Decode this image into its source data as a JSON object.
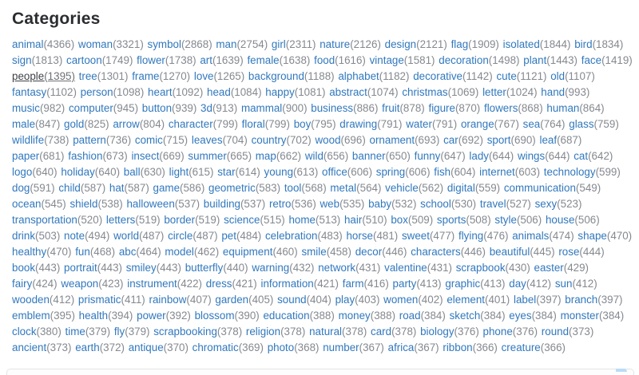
{
  "page": {
    "title": "Categories"
  },
  "active_tag": "people",
  "colors": {
    "link_blue": "#3178bd",
    "count_gray": "#85898f",
    "active_dark": "#3f4246",
    "heading": "#2b2d30",
    "panel_border": "#e3e4e6",
    "panel_handle_blue": "#bcdcf5"
  },
  "tags": [
    {
      "name": "animal",
      "count": 4366
    },
    {
      "name": "woman",
      "count": 3321
    },
    {
      "name": "symbol",
      "count": 2868
    },
    {
      "name": "man",
      "count": 2754
    },
    {
      "name": "girl",
      "count": 2311
    },
    {
      "name": "nature",
      "count": 2126
    },
    {
      "name": "design",
      "count": 2121
    },
    {
      "name": "flag",
      "count": 1909
    },
    {
      "name": "isolated",
      "count": 1844
    },
    {
      "name": "bird",
      "count": 1834
    },
    {
      "name": "sign",
      "count": 1813
    },
    {
      "name": "cartoon",
      "count": 1749
    },
    {
      "name": "flower",
      "count": 1738
    },
    {
      "name": "art",
      "count": 1639
    },
    {
      "name": "female",
      "count": 1638
    },
    {
      "name": "food",
      "count": 1616
    },
    {
      "name": "vintage",
      "count": 1581
    },
    {
      "name": "decoration",
      "count": 1498
    },
    {
      "name": "plant",
      "count": 1443
    },
    {
      "name": "face",
      "count": 1419
    },
    {
      "name": "people",
      "count": 1395
    },
    {
      "name": "tree",
      "count": 1301
    },
    {
      "name": "frame",
      "count": 1270
    },
    {
      "name": "love",
      "count": 1265
    },
    {
      "name": "background",
      "count": 1188
    },
    {
      "name": "alphabet",
      "count": 1182
    },
    {
      "name": "decorative",
      "count": 1142
    },
    {
      "name": "cute",
      "count": 1121
    },
    {
      "name": "old",
      "count": 1107
    },
    {
      "name": "fantasy",
      "count": 1102
    },
    {
      "name": "person",
      "count": 1098
    },
    {
      "name": "heart",
      "count": 1092
    },
    {
      "name": "head",
      "count": 1084
    },
    {
      "name": "happy",
      "count": 1081
    },
    {
      "name": "abstract",
      "count": 1074
    },
    {
      "name": "christmas",
      "count": 1069
    },
    {
      "name": "letter",
      "count": 1024
    },
    {
      "name": "hand",
      "count": 993
    },
    {
      "name": "music",
      "count": 982
    },
    {
      "name": "computer",
      "count": 945
    },
    {
      "name": "button",
      "count": 939
    },
    {
      "name": "3d",
      "count": 913
    },
    {
      "name": "mammal",
      "count": 900
    },
    {
      "name": "business",
      "count": 886
    },
    {
      "name": "fruit",
      "count": 878
    },
    {
      "name": "figure",
      "count": 870
    },
    {
      "name": "flowers",
      "count": 868
    },
    {
      "name": "human",
      "count": 864
    },
    {
      "name": "male",
      "count": 847
    },
    {
      "name": "gold",
      "count": 825
    },
    {
      "name": "arrow",
      "count": 804
    },
    {
      "name": "character",
      "count": 799
    },
    {
      "name": "floral",
      "count": 799
    },
    {
      "name": "boy",
      "count": 795
    },
    {
      "name": "drawing",
      "count": 791
    },
    {
      "name": "water",
      "count": 791
    },
    {
      "name": "orange",
      "count": 767
    },
    {
      "name": "sea",
      "count": 764
    },
    {
      "name": "glass",
      "count": 759
    },
    {
      "name": "wildlife",
      "count": 738
    },
    {
      "name": "pattern",
      "count": 736
    },
    {
      "name": "comic",
      "count": 715
    },
    {
      "name": "leaves",
      "count": 704
    },
    {
      "name": "country",
      "count": 702
    },
    {
      "name": "wood",
      "count": 696
    },
    {
      "name": "ornament",
      "count": 693
    },
    {
      "name": "car",
      "count": 692
    },
    {
      "name": "sport",
      "count": 690
    },
    {
      "name": "leaf",
      "count": 687
    },
    {
      "name": "paper",
      "count": 681
    },
    {
      "name": "fashion",
      "count": 673
    },
    {
      "name": "insect",
      "count": 669
    },
    {
      "name": "summer",
      "count": 665
    },
    {
      "name": "map",
      "count": 662
    },
    {
      "name": "wild",
      "count": 656
    },
    {
      "name": "banner",
      "count": 650
    },
    {
      "name": "funny",
      "count": 647
    },
    {
      "name": "lady",
      "count": 644
    },
    {
      "name": "wings",
      "count": 644
    },
    {
      "name": "cat",
      "count": 642
    },
    {
      "name": "logo",
      "count": 640
    },
    {
      "name": "holiday",
      "count": 640
    },
    {
      "name": "ball",
      "count": 630
    },
    {
      "name": "light",
      "count": 615
    },
    {
      "name": "star",
      "count": 614
    },
    {
      "name": "young",
      "count": 613
    },
    {
      "name": "office",
      "count": 606
    },
    {
      "name": "spring",
      "count": 606
    },
    {
      "name": "fish",
      "count": 604
    },
    {
      "name": "internet",
      "count": 603
    },
    {
      "name": "technology",
      "count": 599
    },
    {
      "name": "dog",
      "count": 591
    },
    {
      "name": "child",
      "count": 587
    },
    {
      "name": "hat",
      "count": 587
    },
    {
      "name": "game",
      "count": 586
    },
    {
      "name": "geometric",
      "count": 583
    },
    {
      "name": "tool",
      "count": 568
    },
    {
      "name": "metal",
      "count": 564
    },
    {
      "name": "vehicle",
      "count": 562
    },
    {
      "name": "digital",
      "count": 559
    },
    {
      "name": "communication",
      "count": 549
    },
    {
      "name": "ocean",
      "count": 545
    },
    {
      "name": "shield",
      "count": 538
    },
    {
      "name": "halloween",
      "count": 537
    },
    {
      "name": "building",
      "count": 537
    },
    {
      "name": "retro",
      "count": 536
    },
    {
      "name": "web",
      "count": 535
    },
    {
      "name": "baby",
      "count": 532
    },
    {
      "name": "school",
      "count": 530
    },
    {
      "name": "travel",
      "count": 527
    },
    {
      "name": "sexy",
      "count": 523
    },
    {
      "name": "transportation",
      "count": 520
    },
    {
      "name": "letters",
      "count": 519
    },
    {
      "name": "border",
      "count": 519
    },
    {
      "name": "science",
      "count": 515
    },
    {
      "name": "home",
      "count": 513
    },
    {
      "name": "hair",
      "count": 510
    },
    {
      "name": "box",
      "count": 509
    },
    {
      "name": "sports",
      "count": 508
    },
    {
      "name": "style",
      "count": 506
    },
    {
      "name": "house",
      "count": 506
    },
    {
      "name": "drink",
      "count": 503
    },
    {
      "name": "note",
      "count": 494
    },
    {
      "name": "world",
      "count": 487
    },
    {
      "name": "circle",
      "count": 487
    },
    {
      "name": "pet",
      "count": 484
    },
    {
      "name": "celebration",
      "count": 483
    },
    {
      "name": "horse",
      "count": 481
    },
    {
      "name": "sweet",
      "count": 477
    },
    {
      "name": "flying",
      "count": 476
    },
    {
      "name": "animals",
      "count": 474
    },
    {
      "name": "shape",
      "count": 470
    },
    {
      "name": "healthy",
      "count": 470
    },
    {
      "name": "fun",
      "count": 468
    },
    {
      "name": "abc",
      "count": 464
    },
    {
      "name": "model",
      "count": 462
    },
    {
      "name": "equipment",
      "count": 460
    },
    {
      "name": "smile",
      "count": 458
    },
    {
      "name": "decor",
      "count": 446
    },
    {
      "name": "characters",
      "count": 446
    },
    {
      "name": "beautiful",
      "count": 445
    },
    {
      "name": "rose",
      "count": 444
    },
    {
      "name": "book",
      "count": 443
    },
    {
      "name": "portrait",
      "count": 443
    },
    {
      "name": "smiley",
      "count": 443
    },
    {
      "name": "butterfly",
      "count": 440
    },
    {
      "name": "warning",
      "count": 432
    },
    {
      "name": "network",
      "count": 431
    },
    {
      "name": "valentine",
      "count": 431
    },
    {
      "name": "scrapbook",
      "count": 430
    },
    {
      "name": "easter",
      "count": 429
    },
    {
      "name": "fairy",
      "count": 424
    },
    {
      "name": "weapon",
      "count": 423
    },
    {
      "name": "instrument",
      "count": 422
    },
    {
      "name": "dress",
      "count": 421
    },
    {
      "name": "information",
      "count": 421
    },
    {
      "name": "farm",
      "count": 416
    },
    {
      "name": "party",
      "count": 413
    },
    {
      "name": "graphic",
      "count": 413
    },
    {
      "name": "day",
      "count": 412
    },
    {
      "name": "sun",
      "count": 412
    },
    {
      "name": "wooden",
      "count": 412
    },
    {
      "name": "prismatic",
      "count": 411
    },
    {
      "name": "rainbow",
      "count": 407
    },
    {
      "name": "garden",
      "count": 405
    },
    {
      "name": "sound",
      "count": 404
    },
    {
      "name": "play",
      "count": 403
    },
    {
      "name": "women",
      "count": 402
    },
    {
      "name": "element",
      "count": 401
    },
    {
      "name": "label",
      "count": 397
    },
    {
      "name": "branch",
      "count": 397
    },
    {
      "name": "emblem",
      "count": 395
    },
    {
      "name": "health",
      "count": 394
    },
    {
      "name": "power",
      "count": 392
    },
    {
      "name": "blossom",
      "count": 390
    },
    {
      "name": "education",
      "count": 388
    },
    {
      "name": "money",
      "count": 388
    },
    {
      "name": "road",
      "count": 384
    },
    {
      "name": "sketch",
      "count": 384
    },
    {
      "name": "eyes",
      "count": 384
    },
    {
      "name": "monster",
      "count": 384
    },
    {
      "name": "clock",
      "count": 380
    },
    {
      "name": "time",
      "count": 379
    },
    {
      "name": "fly",
      "count": 379
    },
    {
      "name": "scrapbooking",
      "count": 378
    },
    {
      "name": "religion",
      "count": 378
    },
    {
      "name": "natural",
      "count": 378
    },
    {
      "name": "card",
      "count": 378
    },
    {
      "name": "biology",
      "count": 376
    },
    {
      "name": "phone",
      "count": 376
    },
    {
      "name": "round",
      "count": 373
    },
    {
      "name": "ancient",
      "count": 373
    },
    {
      "name": "earth",
      "count": 372
    },
    {
      "name": "antique",
      "count": 370
    },
    {
      "name": "chromatic",
      "count": 369
    },
    {
      "name": "photo",
      "count": 368
    },
    {
      "name": "number",
      "count": 367
    },
    {
      "name": "africa",
      "count": 367
    },
    {
      "name": "ribbon",
      "count": 366
    },
    {
      "name": "creature",
      "count": 366
    }
  ]
}
